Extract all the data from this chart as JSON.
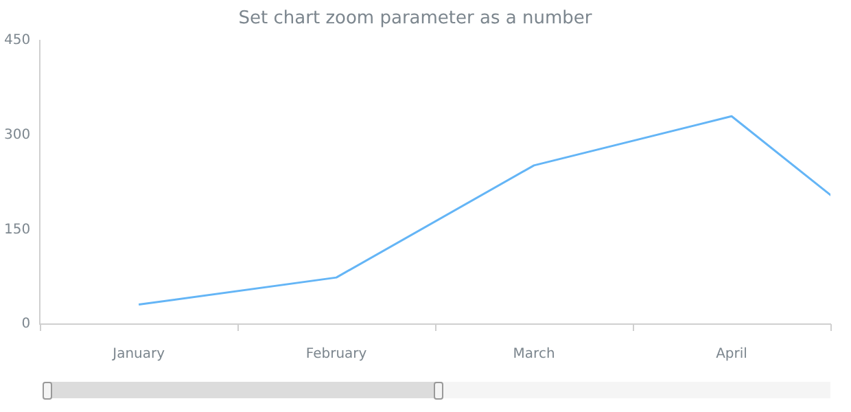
{
  "chart_data": {
    "type": "line",
    "title": "Set chart zoom parameter as a number",
    "categories": [
      "January",
      "February",
      "March",
      "April",
      null
    ],
    "values": [
      31,
      74,
      252,
      330,
      80
    ],
    "color": "#64b5f6",
    "ylim": [
      0,
      450
    ],
    "yticks": [
      0,
      150,
      300,
      450
    ],
    "grid": false,
    "legend": false,
    "marker": "none"
  }
}
